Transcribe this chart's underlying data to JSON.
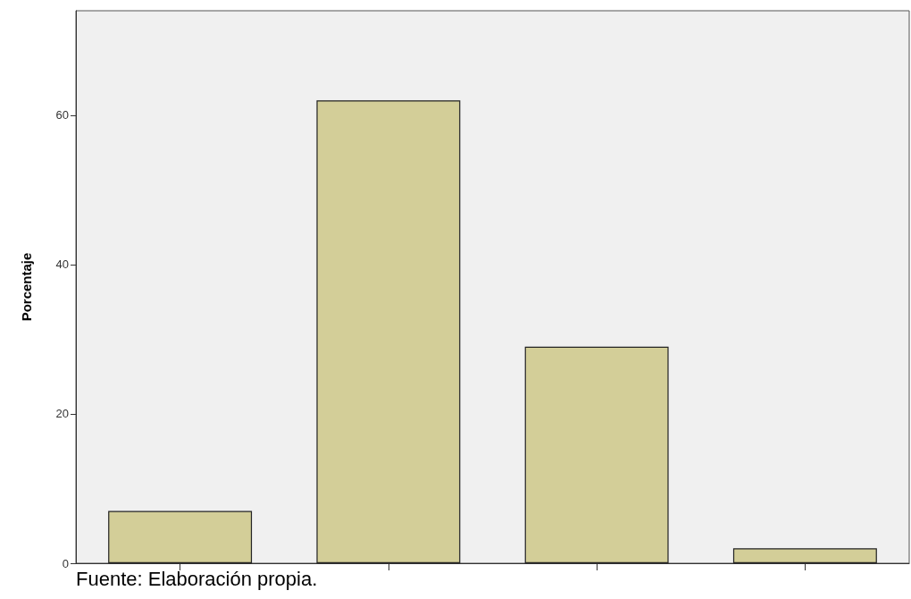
{
  "chart_data": {
    "type": "bar",
    "ylabel": "Porcentaje",
    "categories": [
      null,
      null,
      null,
      null
    ],
    "values": [
      7,
      62,
      29,
      2
    ],
    "color": "#d3ce98",
    "ylim": [
      0,
      74
    ],
    "yticks": [
      0,
      20,
      40,
      60
    ],
    "grid": false,
    "annotations": [
      "Fuente: Elaboración propia."
    ]
  }
}
